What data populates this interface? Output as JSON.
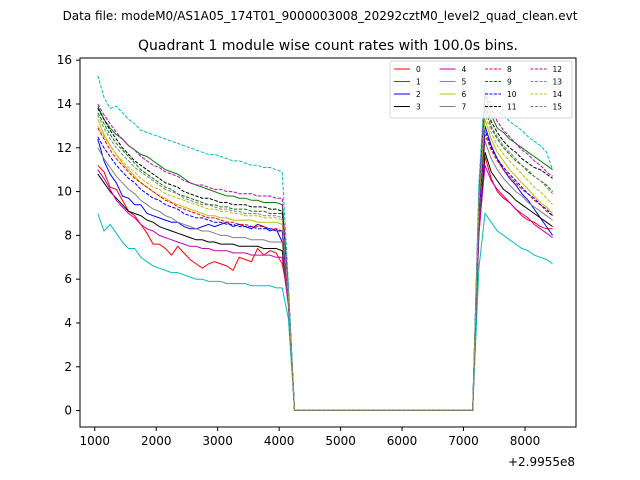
{
  "chart_data": {
    "type": "line",
    "suptitle": "Data file: modeM0/AS1A05_174T01_9000003008_20292cztM0_level2_quad_clean.evt",
    "title": "Quadrant 1 module wise count rates with 100.0s bins.",
    "xlabel": "",
    "ylabel": "",
    "x_offset_label": "+2.9955e8",
    "xlim": [
      760,
      8830
    ],
    "ylim": [
      -0.75,
      16.1
    ],
    "xticks": [
      1000,
      2000,
      3000,
      4000,
      5000,
      6000,
      7000,
      8000
    ],
    "yticks": [
      0,
      2,
      4,
      6,
      8,
      10,
      12,
      14,
      16
    ],
    "x": [
      1050,
      1150,
      1250,
      1350,
      1450,
      1550,
      1650,
      1750,
      1850,
      1950,
      2050,
      2150,
      2250,
      2350,
      2450,
      2550,
      2650,
      2750,
      2850,
      2950,
      3050,
      3150,
      3250,
      3350,
      3450,
      3550,
      3650,
      3750,
      3850,
      3950,
      4050,
      4150,
      4250,
      4350,
      4450,
      4550,
      4650,
      4750,
      4850,
      4950,
      5050,
      5150,
      5250,
      5350,
      5450,
      5550,
      5650,
      5750,
      5850,
      5950,
      6050,
      6150,
      6250,
      6350,
      6450,
      6550,
      6650,
      6750,
      6850,
      6950,
      7050,
      7150,
      7250,
      7350,
      7450,
      7550,
      7650,
      7750,
      7850,
      7950,
      8050,
      8150,
      8250,
      8350,
      8450
    ],
    "active_segments": [
      [
        1050,
        4150
      ],
      [
        7250,
        8450
      ]
    ],
    "gap_value": 0.02,
    "series": [
      {
        "name": "0",
        "color": "#ff0000",
        "dash": "solid",
        "seg1": [
          11.2,
          10.9,
          10.2,
          10.1,
          9.6,
          9.1,
          8.9,
          8.5,
          8.1,
          7.6,
          7.6,
          7.4,
          7.1,
          7.5,
          7.2,
          6.9,
          6.7,
          6.5,
          6.7,
          6.8,
          6.7,
          6.6,
          6.4,
          7.0,
          6.9,
          6.8,
          7.4,
          7.1,
          7.3,
          7.2,
          6.7,
          5.2
        ],
        "seg2": [
          8.0,
          11.6,
          10.6,
          10.0,
          9.7,
          9.5,
          9.2,
          8.9,
          8.7,
          8.6,
          8.4,
          8.3,
          8.3
        ]
      },
      {
        "name": "1",
        "color": "#008000",
        "dash": "solid",
        "seg1": [
          13.9,
          13.3,
          12.9,
          12.6,
          12.4,
          12.1,
          11.9,
          11.7,
          11.6,
          11.4,
          11.2,
          11.0,
          10.9,
          10.8,
          10.6,
          10.4,
          10.3,
          10.2,
          10.1,
          10.0,
          9.9,
          9.8,
          9.8,
          9.7,
          9.7,
          9.6,
          9.6,
          9.5,
          9.5,
          9.5,
          9.4,
          5.5
        ],
        "seg2": [
          9.9,
          14.4,
          13.5,
          12.9,
          12.7,
          12.4,
          12.2,
          12.0,
          11.8,
          11.6,
          11.4,
          11.2,
          11.0
        ]
      },
      {
        "name": "2",
        "color": "#0000ff",
        "dash": "solid",
        "seg1": [
          12.4,
          11.4,
          10.8,
          10.4,
          9.8,
          9.7,
          9.4,
          9.4,
          9.0,
          8.9,
          8.8,
          8.7,
          8.6,
          8.6,
          8.4,
          8.3,
          8.3,
          8.4,
          8.5,
          8.4,
          8.5,
          8.6,
          8.4,
          8.5,
          8.4,
          8.3,
          8.5,
          8.4,
          8.2,
          8.3,
          7.7,
          5.2
        ],
        "seg2": [
          9.0,
          13.0,
          12.1,
          11.5,
          11.0,
          10.6,
          10.3,
          9.9,
          9.6,
          9.2,
          8.8,
          8.4,
          8.0
        ]
      },
      {
        "name": "3",
        "color": "#000000",
        "dash": "solid",
        "seg1": [
          10.8,
          10.4,
          10.0,
          9.7,
          9.4,
          9.1,
          9.0,
          8.9,
          8.7,
          8.6,
          8.4,
          8.3,
          8.2,
          8.1,
          8.0,
          7.9,
          7.8,
          7.8,
          7.7,
          7.7,
          7.6,
          7.6,
          7.6,
          7.5,
          7.5,
          7.5,
          7.5,
          7.4,
          7.4,
          7.4,
          7.3,
          4.9
        ],
        "seg2": [
          8.3,
          11.8,
          10.9,
          10.5,
          10.1,
          9.9,
          9.6,
          9.4,
          9.2,
          9.0,
          8.8,
          8.6,
          8.4
        ]
      },
      {
        "name": "4",
        "color": "#bf00bf",
        "dash": "solid",
        "seg1": [
          11.0,
          10.6,
          10.1,
          9.6,
          9.3,
          9.0,
          8.8,
          8.5,
          8.3,
          8.2,
          8.0,
          7.9,
          7.8,
          7.7,
          7.6,
          7.5,
          7.5,
          7.4,
          7.4,
          7.3,
          7.3,
          7.3,
          7.2,
          7.2,
          7.2,
          7.1,
          7.1,
          7.1,
          7.1,
          7.0,
          7.0,
          4.8
        ],
        "seg2": [
          8.1,
          11.2,
          10.5,
          10.1,
          9.8,
          9.5,
          9.2,
          9.0,
          8.8,
          8.5,
          8.3,
          8.1,
          7.9
        ]
      },
      {
        "name": "5",
        "color": "#00bfbf",
        "dash": "solid",
        "seg1": [
          9.0,
          8.2,
          8.5,
          8.1,
          7.7,
          7.4,
          7.4,
          7.0,
          6.8,
          6.6,
          6.5,
          6.4,
          6.3,
          6.3,
          6.2,
          6.1,
          6.0,
          6.0,
          5.9,
          5.9,
          5.9,
          5.8,
          5.8,
          5.8,
          5.8,
          5.7,
          5.7,
          5.7,
          5.7,
          5.6,
          5.6,
          4.2
        ],
        "seg2": [
          6.5,
          9.0,
          8.6,
          8.2,
          8.0,
          7.8,
          7.6,
          7.4,
          7.3,
          7.1,
          7.0,
          6.9,
          6.7
        ]
      },
      {
        "name": "6",
        "color": "#bfbf00",
        "dash": "solid",
        "seg1": [
          13.3,
          12.6,
          12.1,
          11.7,
          11.3,
          11.0,
          10.7,
          10.4,
          10.2,
          10.0,
          9.8,
          9.7,
          9.5,
          9.4,
          9.3,
          9.2,
          9.1,
          9.0,
          8.9,
          8.9,
          8.8,
          8.8,
          8.7,
          8.7,
          8.7,
          8.7,
          8.6,
          8.6,
          8.6,
          8.6,
          8.5,
          5.3
        ],
        "seg2": [
          9.2,
          13.3,
          12.4,
          11.8,
          11.4,
          11.0,
          10.7,
          10.4,
          10.1,
          9.8,
          9.5,
          9.3,
          9.0
        ]
      },
      {
        "name": "7",
        "color": "#808080",
        "dash": "solid",
        "seg1": [
          12.0,
          11.5,
          11.1,
          10.7,
          10.4,
          10.1,
          9.9,
          9.6,
          9.4,
          9.2,
          9.1,
          8.9,
          8.8,
          8.6,
          8.5,
          8.4,
          8.3,
          8.2,
          8.2,
          8.1,
          8.0,
          8.0,
          7.9,
          7.9,
          7.9,
          7.8,
          7.8,
          7.8,
          7.7,
          7.7,
          7.7,
          5.0
        ],
        "seg2": [
          8.6,
          12.3,
          11.5,
          11.0,
          10.6,
          10.3,
          10.0,
          9.8,
          9.5,
          9.3,
          9.1,
          8.9,
          8.7
        ]
      },
      {
        "name": "8",
        "color": "#ff0000",
        "dash": "dashed",
        "seg1": [
          12.9,
          12.4,
          11.9,
          11.5,
          11.2,
          10.9,
          10.6,
          10.4,
          10.2,
          10.0,
          9.8,
          9.6,
          9.5,
          9.3,
          9.2,
          9.1,
          9.0,
          8.9,
          8.8,
          8.8,
          8.7,
          8.6,
          8.6,
          8.5,
          8.5,
          8.4,
          8.4,
          8.4,
          8.3,
          8.3,
          8.2,
          5.1
        ],
        "seg2": [
          9.0,
          12.6,
          11.9,
          11.4,
          11.0,
          10.7,
          10.4,
          10.1,
          9.9,
          9.6,
          9.4,
          9.1,
          8.9
        ]
      },
      {
        "name": "9",
        "color": "#008000",
        "dash": "dashed",
        "seg1": [
          13.6,
          13.1,
          12.6,
          12.2,
          11.9,
          11.6,
          11.3,
          11.0,
          10.8,
          10.6,
          10.4,
          10.2,
          10.1,
          9.9,
          9.8,
          9.7,
          9.6,
          9.5,
          9.4,
          9.4,
          9.3,
          9.3,
          9.2,
          9.2,
          9.2,
          9.1,
          9.1,
          9.1,
          9.0,
          9.0,
          9.0,
          5.4
        ],
        "seg2": [
          9.5,
          13.8,
          12.9,
          12.4,
          12.0,
          11.7,
          11.4,
          11.2,
          10.9,
          10.7,
          10.5,
          10.3,
          10.0
        ]
      },
      {
        "name": "10",
        "color": "#0000ff",
        "dash": "dashed",
        "seg1": [
          12.5,
          12.0,
          11.6,
          11.2,
          10.9,
          10.6,
          10.4,
          10.1,
          9.9,
          9.7,
          9.6,
          9.4,
          9.3,
          9.2,
          9.0,
          8.9,
          8.8,
          8.8,
          8.7,
          8.6,
          8.6,
          8.5,
          8.5,
          8.4,
          8.4,
          8.4,
          8.3,
          8.3,
          8.3,
          8.2,
          8.2,
          5.1
        ],
        "seg2": [
          8.9,
          12.8,
          12.0,
          11.5,
          11.1,
          10.8,
          10.5,
          10.2,
          9.9,
          9.7,
          9.4,
          9.2,
          8.9
        ]
      },
      {
        "name": "11",
        "color": "#000000",
        "dash": "dashed",
        "seg1": [
          13.8,
          13.3,
          12.8,
          12.4,
          12.0,
          11.7,
          11.4,
          11.2,
          11.0,
          10.8,
          10.6,
          10.4,
          10.3,
          10.2,
          10.0,
          9.9,
          9.8,
          9.7,
          9.7,
          9.6,
          9.5,
          9.5,
          9.4,
          9.4,
          9.4,
          9.3,
          9.3,
          9.3,
          9.2,
          9.2,
          9.1,
          5.5
        ],
        "seg2": [
          9.7,
          14.0,
          13.2,
          12.7,
          12.3,
          12.0,
          11.8,
          11.5,
          11.3,
          11.1,
          11.0,
          10.8,
          10.6
        ]
      },
      {
        "name": "12",
        "color": "#bf00bf",
        "dash": "dashed",
        "seg1": [
          14.0,
          13.5,
          13.1,
          12.7,
          12.4,
          12.1,
          11.9,
          11.6,
          11.4,
          11.2,
          11.1,
          10.9,
          10.8,
          10.7,
          10.5,
          10.4,
          10.3,
          10.3,
          10.2,
          10.1,
          10.1,
          10.0,
          10.0,
          9.9,
          9.9,
          9.9,
          9.8,
          9.8,
          9.8,
          9.7,
          9.7,
          5.6
        ],
        "seg2": [
          10.0,
          14.6,
          13.8,
          13.2,
          12.8,
          12.5,
          12.2,
          11.9,
          11.7,
          11.4,
          11.2,
          10.9,
          10.7
        ]
      },
      {
        "name": "13",
        "color": "#00bfbf",
        "dash": "dashed",
        "seg1": [
          15.3,
          14.3,
          13.8,
          13.9,
          13.6,
          13.3,
          13.1,
          12.8,
          12.7,
          12.6,
          12.5,
          12.4,
          12.3,
          12.2,
          12.1,
          12.0,
          11.9,
          11.8,
          11.7,
          11.7,
          11.6,
          11.5,
          11.4,
          11.4,
          11.3,
          11.2,
          11.2,
          11.1,
          11.1,
          11.0,
          10.9,
          5.8
        ],
        "seg2": [
          10.4,
          14.9,
          14.1,
          13.7,
          13.5,
          13.2,
          13.0,
          12.8,
          12.5,
          12.3,
          12.1,
          11.8,
          11.0
        ]
      },
      {
        "name": "14",
        "color": "#bfbf00",
        "dash": "dashed",
        "seg1": [
          13.0,
          12.5,
          12.1,
          11.7,
          11.4,
          11.1,
          10.9,
          10.6,
          10.4,
          10.2,
          10.1,
          9.9,
          9.8,
          9.7,
          9.6,
          9.5,
          9.4,
          9.3,
          9.2,
          9.2,
          9.1,
          9.1,
          9.0,
          9.0,
          8.9,
          8.9,
          8.9,
          8.8,
          8.8,
          8.8,
          8.7,
          5.2
        ],
        "seg2": [
          9.4,
          13.5,
          12.7,
          12.1,
          11.7,
          11.4,
          11.1,
          10.8,
          10.5,
          10.2,
          10.0,
          9.7,
          9.4
        ]
      },
      {
        "name": "15",
        "color": "#808080",
        "dash": "dashed",
        "seg1": [
          13.5,
          12.9,
          12.4,
          12.0,
          11.7,
          11.4,
          11.1,
          10.9,
          10.7,
          10.5,
          10.3,
          10.1,
          10.0,
          9.9,
          9.7,
          9.6,
          9.5,
          9.4,
          9.4,
          9.3,
          9.2,
          9.2,
          9.1,
          9.1,
          9.0,
          9.0,
          9.0,
          8.9,
          8.9,
          8.9,
          8.8,
          5.3
        ],
        "seg2": [
          9.6,
          13.9,
          13.0,
          12.5,
          12.1,
          11.8,
          11.5,
          11.2,
          11.0,
          10.7,
          10.5,
          10.2,
          9.9
        ]
      }
    ],
    "legend": {
      "position": "upper right",
      "columns": 4
    },
    "grid": false
  }
}
